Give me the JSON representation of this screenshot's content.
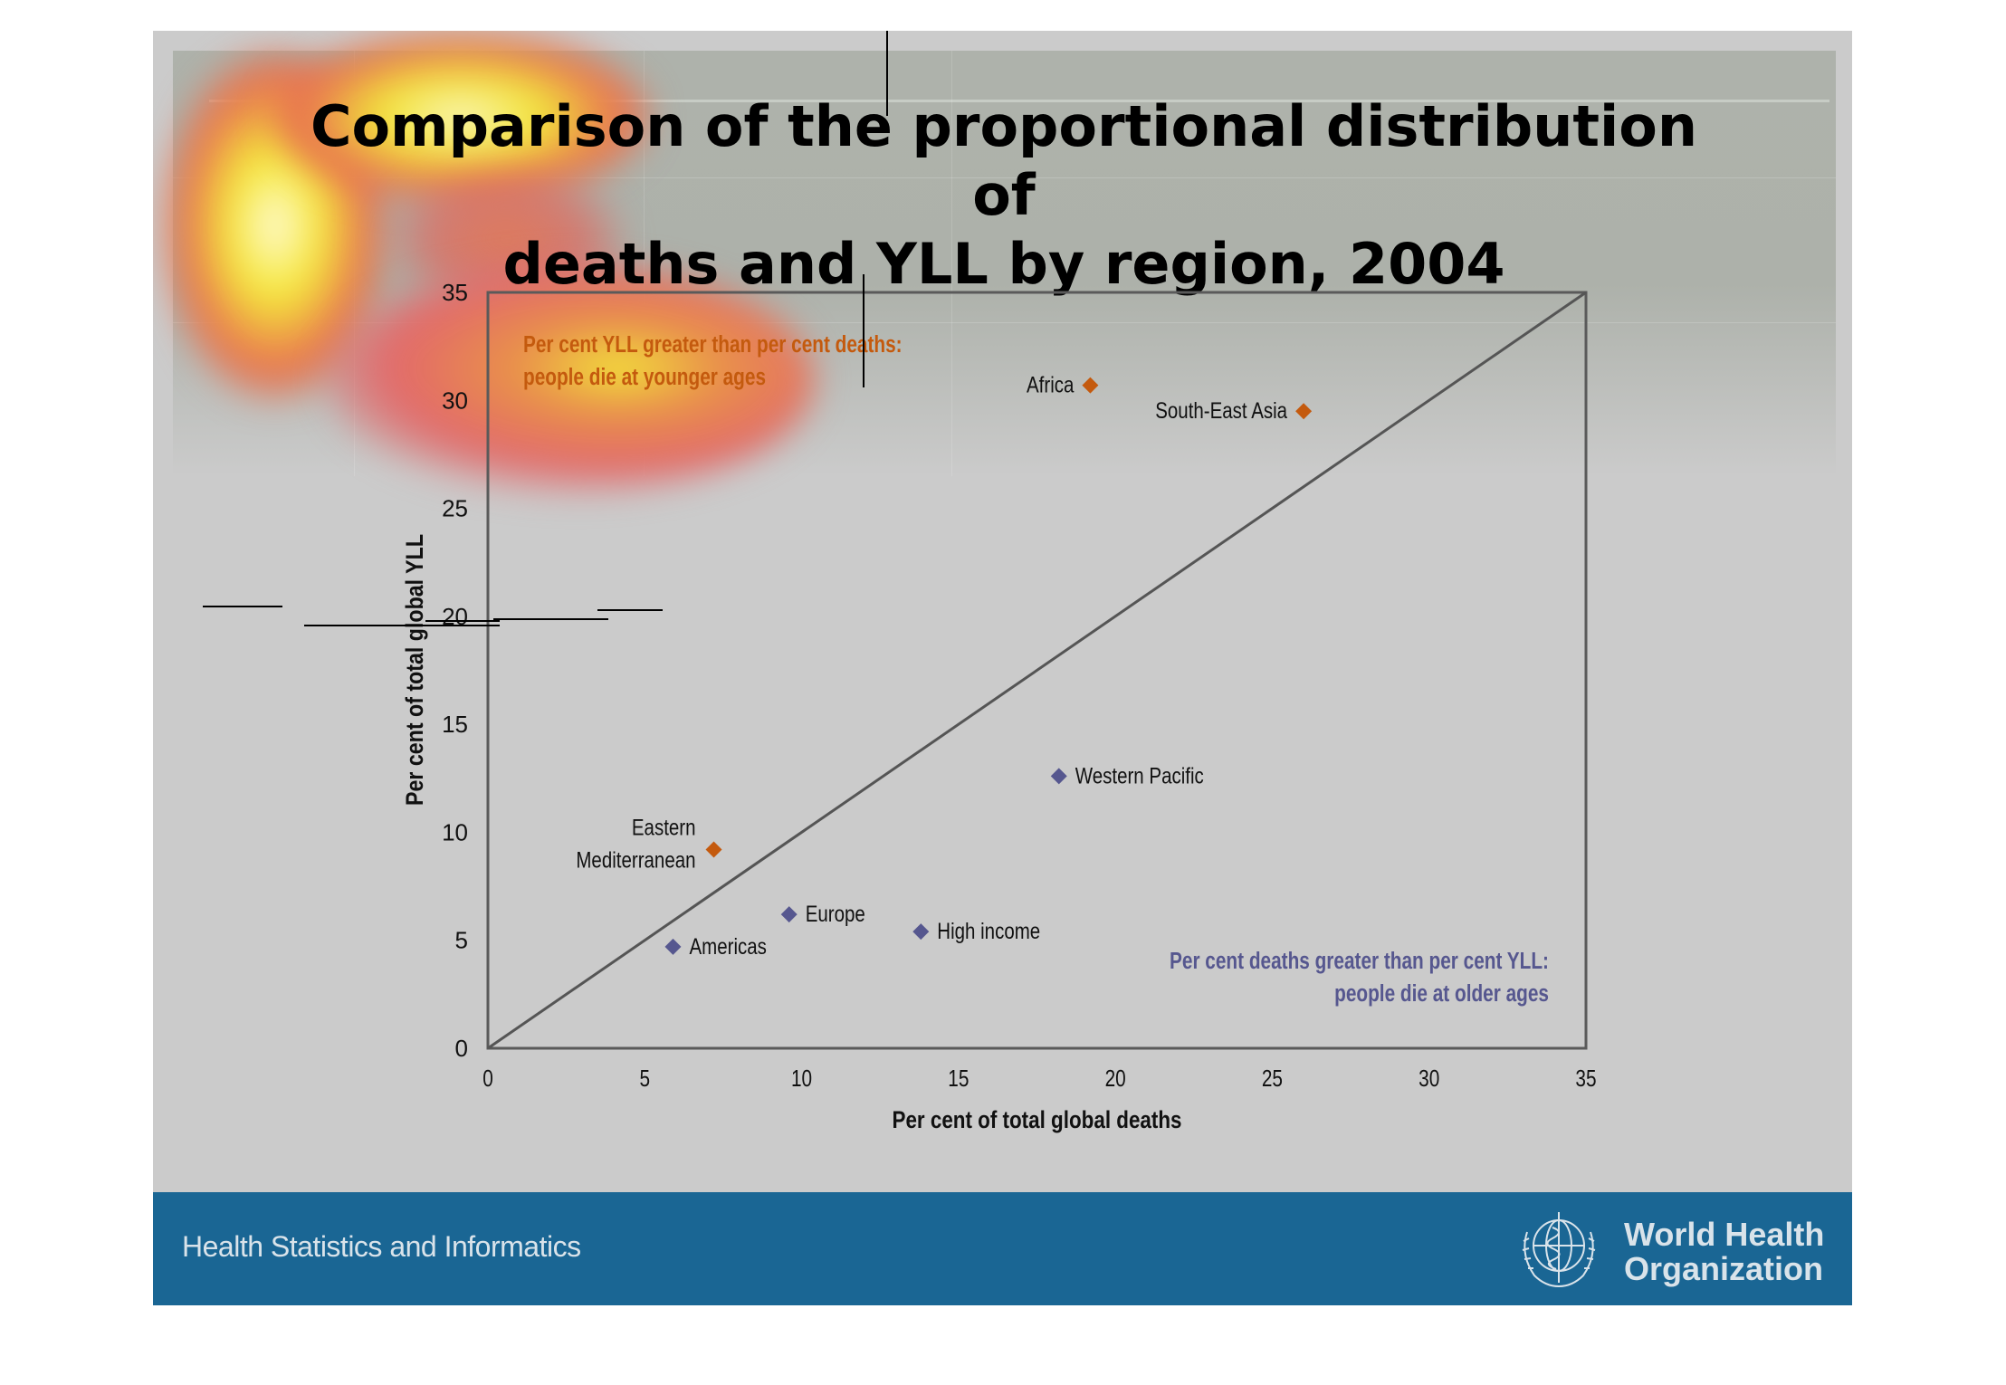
{
  "slide": {
    "title_line1": "Comparison of the proportional distribution of",
    "title_line2": "deaths and YLL by region, 2004",
    "footer_text": "Health Statistics and Informatics",
    "org_name_line1": "World Health",
    "org_name_line2": "Organization",
    "footer_color": "#1a6694",
    "logo_icon": "who-emblem-icon"
  },
  "chart_data": {
    "type": "scatter",
    "title": "Comparison of the proportional distribution of deaths and YLL by region, 2004",
    "xlabel": "Per cent of total global deaths",
    "ylabel": "Per cent of total global YLL",
    "xlim": [
      0,
      35
    ],
    "ylim": [
      0,
      35
    ],
    "xticks": [
      "0",
      "5",
      "10",
      "15",
      "20",
      "25",
      "30",
      "35"
    ],
    "yticks": [
      "0",
      "5",
      "10",
      "15",
      "20",
      "25",
      "30",
      "35"
    ],
    "grid": false,
    "reference_line": {
      "name": "y = x",
      "from": [
        0,
        0
      ],
      "to": [
        35,
        35
      ]
    },
    "colors": {
      "younger": "#c45a0e",
      "older": "#56578f"
    },
    "points": [
      {
        "label": "Africa",
        "x": 19.2,
        "y": 30.7,
        "group": "younger"
      },
      {
        "label": "South-East Asia",
        "x": 26.0,
        "y": 29.5,
        "group": "younger"
      },
      {
        "label": "Eastern Mediterranean",
        "label_lines": [
          "Eastern",
          "Mediterranean"
        ],
        "x": 7.2,
        "y": 9.2,
        "group": "younger"
      },
      {
        "label": "Western Pacific",
        "x": 18.2,
        "y": 12.6,
        "group": "older"
      },
      {
        "label": "Europe",
        "x": 9.6,
        "y": 6.2,
        "group": "older"
      },
      {
        "label": "High income",
        "x": 13.8,
        "y": 5.4,
        "group": "older"
      },
      {
        "label": "Americas",
        "x": 5.9,
        "y": 4.7,
        "group": "older"
      }
    ],
    "annotations": [
      {
        "name": "younger-ages-note",
        "lines": [
          "Per cent YLL greater than per cent deaths:",
          "people die at younger ages"
        ],
        "color": "#c45a0e",
        "placement": "top-left"
      },
      {
        "name": "older-ages-note",
        "lines": [
          "Per cent deaths greater than per cent YLL:",
          "people die at older ages"
        ],
        "color": "#56578f",
        "placement": "bottom-right"
      }
    ]
  }
}
